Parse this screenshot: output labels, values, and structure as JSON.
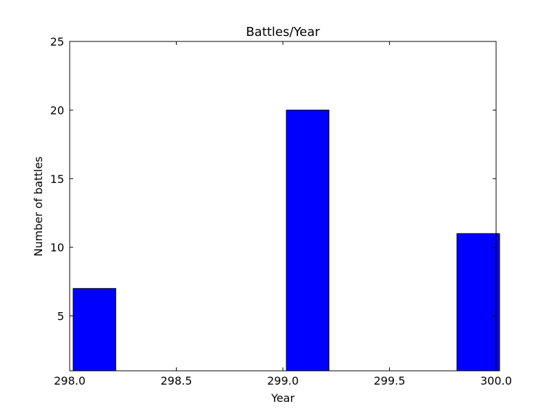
{
  "chart_data": {
    "type": "bar",
    "title": "Battles/Year",
    "xlabel": "Year",
    "ylabel": "Number of battles",
    "xlim": [
      298.0,
      300.0
    ],
    "ylim": [
      1,
      25
    ],
    "bar_color": "#0000ff",
    "edge_color": "#000000",
    "grid": false,
    "legend": "none",
    "bars": [
      {
        "x0": 298.0,
        "x1": 298.2,
        "value": 7
      },
      {
        "x0": 299.0,
        "x1": 299.2,
        "value": 20
      },
      {
        "x0": 299.8,
        "x1": 300.0,
        "value": 11
      }
    ],
    "xticks": [
      298.0,
      298.5,
      299.0,
      299.5,
      300.0
    ],
    "xtick_labels": [
      "298.0",
      "298.5",
      "299.0",
      "299.5",
      "300.0"
    ],
    "yticks": [
      5,
      10,
      15,
      20,
      25
    ],
    "ytick_labels": [
      "5",
      "10",
      "15",
      "20",
      "25"
    ]
  }
}
